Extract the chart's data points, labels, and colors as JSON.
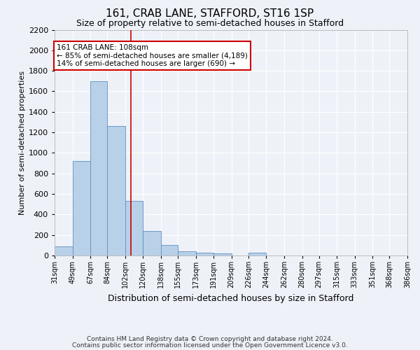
{
  "title": "161, CRAB LANE, STAFFORD, ST16 1SP",
  "subtitle": "Size of property relative to semi-detached houses in Stafford",
  "xlabel": "Distribution of semi-detached houses by size in Stafford",
  "ylabel": "Number of semi-detached properties",
  "footnote1": "Contains HM Land Registry data © Crown copyright and database right 2024.",
  "footnote2": "Contains public sector information licensed under the Open Government Licence v3.0.",
  "annotation_title": "161 CRAB LANE: 108sqm",
  "annotation_line1": "← 85% of semi-detached houses are smaller (4,189)",
  "annotation_line2": "14% of semi-detached houses are larger (690) →",
  "property_size": 108,
  "bin_edges": [
    31,
    49,
    67,
    84,
    102,
    120,
    138,
    155,
    173,
    191,
    209,
    226,
    244,
    262,
    280,
    297,
    315,
    333,
    351,
    368,
    386
  ],
  "bin_labels": [
    "31sqm",
    "49sqm",
    "67sqm",
    "84sqm",
    "102sqm",
    "120sqm",
    "138sqm",
    "155sqm",
    "173sqm",
    "191sqm",
    "209sqm",
    "226sqm",
    "244sqm",
    "262sqm",
    "280sqm",
    "297sqm",
    "315sqm",
    "333sqm",
    "351sqm",
    "368sqm",
    "386sqm"
  ],
  "bar_heights": [
    90,
    920,
    1700,
    1260,
    530,
    240,
    100,
    40,
    30,
    20,
    0,
    25,
    0,
    0,
    0,
    0,
    0,
    0,
    0,
    0
  ],
  "bar_color": "#b8d0e8",
  "bar_edge_color": "#6090c0",
  "vline_color": "#cc0000",
  "vline_x": 108,
  "ylim": [
    0,
    2200
  ],
  "yticks": [
    0,
    200,
    400,
    600,
    800,
    1000,
    1200,
    1400,
    1600,
    1800,
    2000,
    2200
  ],
  "bg_color": "#eef2f8",
  "grid_color": "#ffffff",
  "annotation_box_facecolor": "#ffffff",
  "annotation_box_edgecolor": "#cc0000",
  "title_fontsize": 11,
  "subtitle_fontsize": 9,
  "ylabel_fontsize": 8,
  "xlabel_fontsize": 9,
  "tick_fontsize": 8,
  "xtick_fontsize": 7,
  "footnote_fontsize": 6.5
}
